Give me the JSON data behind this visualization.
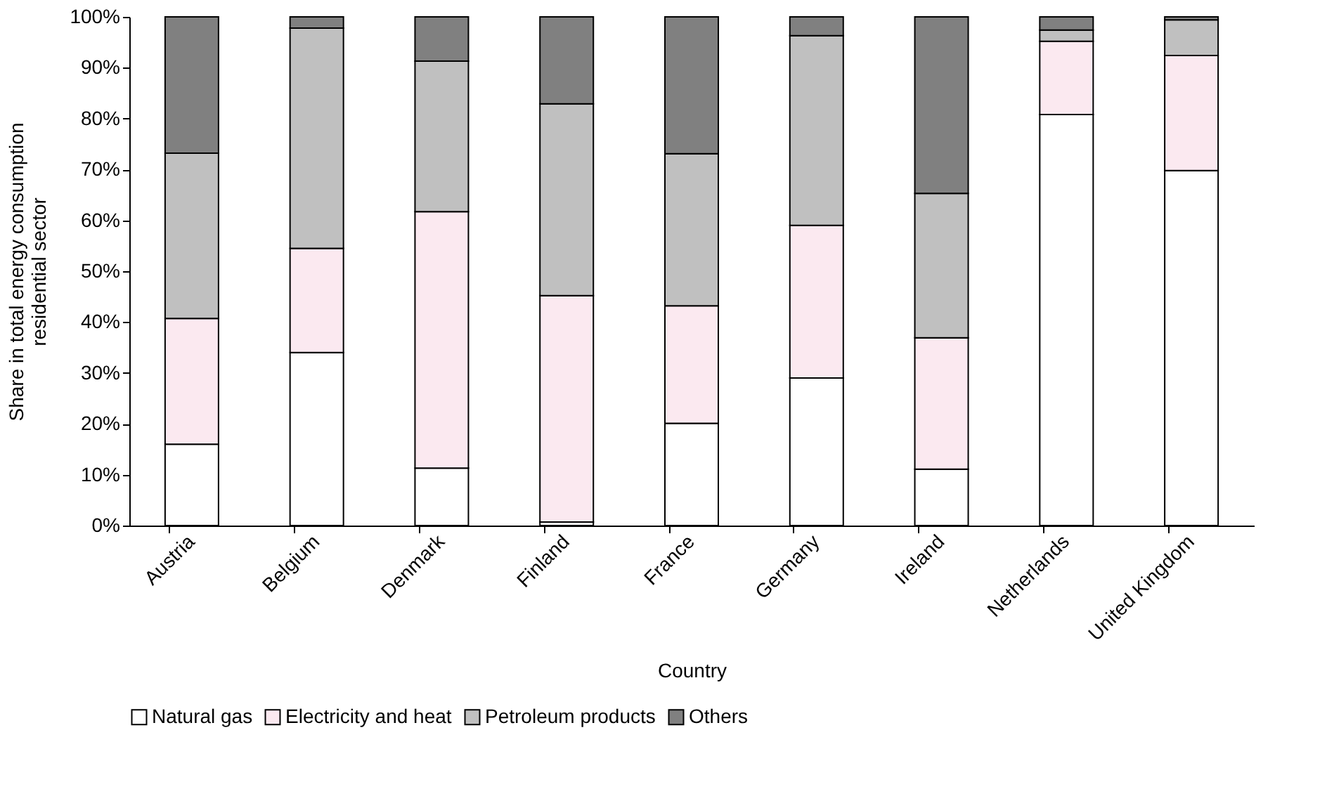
{
  "chart_data": {
    "type": "bar",
    "stacked": true,
    "xlabel": "Country",
    "ylabel": "Share in total energy consumption residential sector",
    "categories": [
      "Austria",
      "Belgium",
      "Denmark",
      "Finland",
      "France",
      "Germany",
      "Ireland",
      "Netherlands",
      "United Kingdom"
    ],
    "series": [
      {
        "name": "Natural gas",
        "color": "#ffffff",
        "values": [
          16,
          34,
          11.3,
          0.7,
          20.1,
          29,
          11.1,
          80.8,
          69.8
        ]
      },
      {
        "name": "Electricity and heat",
        "color": "#fbe9f0",
        "values": [
          24.7,
          20.5,
          50.4,
          44.5,
          23.1,
          30,
          25.8,
          14.4,
          22.6
        ]
      },
      {
        "name": "Petroleum products",
        "color": "#c0c0c0",
        "values": [
          32.5,
          43.3,
          29.6,
          37.7,
          29.9,
          37.3,
          28.4,
          2.2,
          7.0
        ]
      },
      {
        "name": "Others",
        "color": "#808080",
        "values": [
          26.8,
          2.2,
          8.7,
          17.1,
          26.9,
          3.7,
          34.7,
          2.6,
          0.6
        ]
      }
    ],
    "ylim": [
      0,
      100
    ],
    "yticks": [
      {
        "value": 0,
        "label": "0%"
      },
      {
        "value": 10,
        "label": "10%"
      },
      {
        "value": 20,
        "label": "20%"
      },
      {
        "value": 30,
        "label": "30%"
      },
      {
        "value": 40,
        "label": "40%"
      },
      {
        "value": 50,
        "label": "50%"
      },
      {
        "value": 60,
        "label": "60%"
      },
      {
        "value": 70,
        "label": "70%"
      },
      {
        "value": 80,
        "label": "80%"
      },
      {
        "value": 90,
        "label": "90%"
      },
      {
        "value": 100,
        "label": "100%"
      }
    ],
    "grid": false,
    "legend": "bottom"
  }
}
